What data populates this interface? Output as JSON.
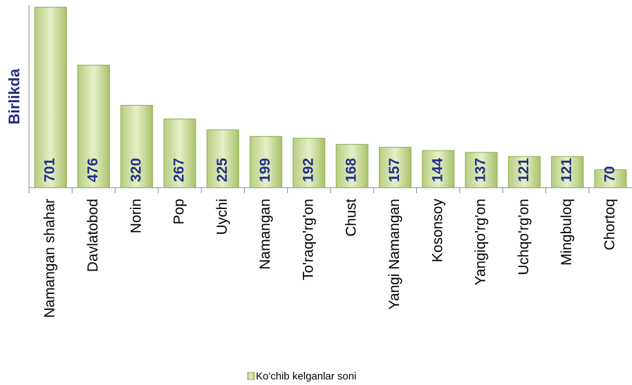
{
  "chart_data": {
    "type": "bar",
    "y_label": "Birlikda",
    "categories": [
      "Namangan shahar",
      "Davlatobod",
      "Norin",
      "Pop",
      "Uychi",
      "Namangan",
      "To'raqo'rg'on",
      "Chust",
      "Yangi Namangan",
      "Kosonsoy",
      "Yangiqo'rg'on",
      "Uchqo'rg'on",
      "Mingbuloq",
      "Chortoq"
    ],
    "series": [
      {
        "name": "Ko'chib kelganlar soni",
        "color": "#c3d69b",
        "values": [
          701,
          476,
          320,
          267,
          225,
          199,
          192,
          168,
          157,
          144,
          137,
          121,
          121,
          70
        ]
      }
    ],
    "ylim": [
      0,
      710
    ],
    "grid": false,
    "legend": "bottom"
  }
}
